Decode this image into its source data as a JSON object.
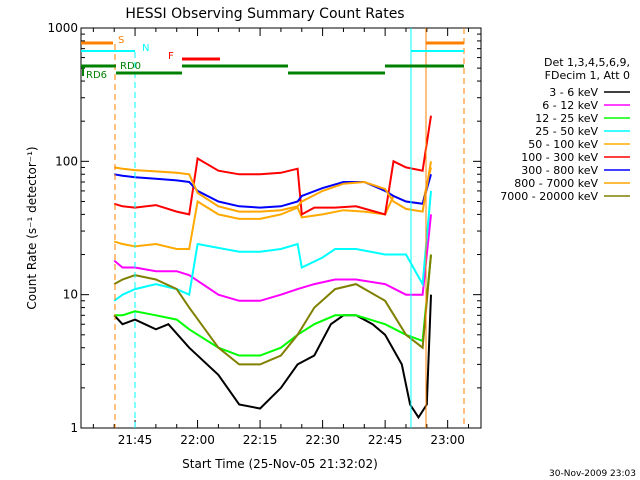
{
  "chart_data": {
    "type": "line",
    "title": "HESSI Observing Summary Count Rates",
    "xlabel": "Start Time (25-Nov-05 21:32:02)",
    "ylabel": "Count Rate (s⁻¹ detector⁻¹)",
    "x_scale": "time (minutes after 21:32:02)",
    "xlim": [
      "21:32:02",
      "23:08:00"
    ],
    "ylim": [
      1,
      1000
    ],
    "y_scale": "log",
    "x_ticks": [
      "21:45",
      "22:00",
      "22:15",
      "22:30",
      "22:45",
      "23:00"
    ],
    "y_ticks": [
      "1",
      "10",
      "100",
      "1000"
    ],
    "legend_header": [
      "Det 1,3,4,5,6,9,",
      "FDecim 1, Att 0"
    ],
    "legend_position": "right",
    "series": [
      {
        "name": "3 - 6 keV",
        "color": "#000000",
        "x": [
          "21:40",
          "21:42",
          "21:45",
          "21:50",
          "21:53",
          "21:58",
          "22:05",
          "22:10",
          "22:15",
          "22:20",
          "22:24",
          "22:28",
          "22:32",
          "22:35",
          "22:38",
          "22:42",
          "22:45",
          "22:49",
          "22:51",
          "22:53",
          "22:55",
          "22:56"
        ],
        "y": [
          7,
          6,
          6.5,
          5.5,
          6,
          4,
          2.5,
          1.5,
          1.4,
          2,
          3,
          3.5,
          6,
          7,
          7,
          6,
          5,
          3,
          1.5,
          1.2,
          1.5,
          10
        ]
      },
      {
        "name": "6 - 12 keV",
        "color": "#ff00ff",
        "x": [
          "21:40",
          "21:42",
          "21:45",
          "21:50",
          "21:55",
          "21:58",
          "22:05",
          "22:10",
          "22:15",
          "22:20",
          "22:24",
          "22:28",
          "22:33",
          "22:38",
          "22:45",
          "22:50",
          "22:54",
          "22:56"
        ],
        "y": [
          18,
          16,
          16,
          15,
          15,
          14,
          10,
          9,
          9,
          10,
          11,
          12,
          13,
          13,
          12,
          10,
          10,
          40
        ]
      },
      {
        "name": "12 - 25 keV",
        "color": "#00ff00",
        "x": [
          "21:40",
          "21:42",
          "21:45",
          "21:50",
          "21:55",
          "21:58",
          "22:05",
          "22:10",
          "22:15",
          "22:20",
          "22:24",
          "22:28",
          "22:33",
          "22:38",
          "22:45",
          "22:50",
          "22:54",
          "22:56"
        ],
        "y": [
          7,
          7,
          7.5,
          7,
          6.5,
          5.5,
          4,
          3.5,
          3.5,
          4,
          5,
          6,
          7,
          7,
          6,
          5,
          4.5,
          20
        ]
      },
      {
        "name": "25 - 50 keV",
        "color": "#00ffff",
        "x": [
          "21:40",
          "21:42",
          "21:45",
          "21:50",
          "21:55",
          "21:58",
          "22:00",
          "22:10",
          "22:15",
          "22:20",
          "22:24",
          "22:25",
          "22:30",
          "22:33",
          "22:38",
          "22:45",
          "22:47",
          "22:50",
          "22:54",
          "22:56"
        ],
        "y": [
          9,
          10,
          11,
          12,
          11,
          10,
          24,
          21,
          21,
          22,
          24,
          16,
          19,
          22,
          22,
          20,
          20,
          20,
          12,
          60
        ]
      },
      {
        "name": "50 - 100 keV",
        "color": "#ffaa00",
        "x": [
          "21:40",
          "21:42",
          "21:45",
          "21:50",
          "21:55",
          "21:58",
          "22:00",
          "22:05",
          "22:10",
          "22:15",
          "22:20",
          "22:24",
          "22:25",
          "22:30",
          "22:35",
          "22:40",
          "22:45",
          "22:47",
          "22:50",
          "22:54",
          "22:56"
        ],
        "y": [
          25,
          24,
          23,
          24,
          22,
          22,
          50,
          40,
          37,
          37,
          40,
          45,
          38,
          40,
          43,
          42,
          40,
          55,
          50,
          48,
          90
        ]
      },
      {
        "name": "100 - 300 keV",
        "color": "#ff0000",
        "x": [
          "21:40",
          "21:42",
          "21:45",
          "21:50",
          "21:55",
          "21:58",
          "22:00",
          "22:05",
          "22:10",
          "22:15",
          "22:20",
          "22:24",
          "22:25",
          "22:28",
          "22:33",
          "22:38",
          "22:45",
          "22:47",
          "22:50",
          "22:54",
          "22:56"
        ],
        "y": [
          48,
          46,
          45,
          47,
          42,
          40,
          105,
          85,
          80,
          80,
          82,
          88,
          40,
          45,
          45,
          46,
          40,
          100,
          90,
          85,
          220
        ]
      },
      {
        "name": "300 - 800 keV",
        "color": "#0000ff",
        "x": [
          "21:40",
          "21:42",
          "21:45",
          "21:50",
          "21:55",
          "21:58",
          "22:00",
          "22:05",
          "22:10",
          "22:15",
          "22:20",
          "22:24",
          "22:25",
          "22:30",
          "22:35",
          "22:40",
          "22:45",
          "22:47",
          "22:50",
          "22:54",
          "22:56"
        ],
        "y": [
          80,
          78,
          76,
          74,
          72,
          70,
          60,
          50,
          46,
          45,
          46,
          50,
          55,
          63,
          70,
          70,
          60,
          55,
          50,
          48,
          80
        ]
      },
      {
        "name": "800 - 7000 keV",
        "color": "#ffa500",
        "x": [
          "21:40",
          "21:42",
          "21:45",
          "21:50",
          "21:55",
          "21:58",
          "22:00",
          "22:05",
          "22:10",
          "22:15",
          "22:20",
          "22:24",
          "22:25",
          "22:30",
          "22:35",
          "22:40",
          "22:45",
          "22:47",
          "22:50",
          "22:54",
          "22:56"
        ],
        "y": [
          90,
          88,
          86,
          84,
          82,
          80,
          58,
          46,
          42,
          42,
          43,
          46,
          50,
          60,
          68,
          70,
          62,
          50,
          44,
          42,
          100
        ]
      },
      {
        "name": "7000 - 20000 keV",
        "color": "#808000",
        "x": [
          "21:40",
          "21:42",
          "21:45",
          "21:50",
          "21:55",
          "21:58",
          "22:05",
          "22:10",
          "22:15",
          "22:20",
          "22:24",
          "22:28",
          "22:33",
          "22:38",
          "22:45",
          "22:50",
          "22:54",
          "22:56"
        ],
        "y": [
          12,
          13,
          14,
          13,
          11,
          8,
          4,
          3,
          3,
          3.5,
          5,
          8,
          11,
          12,
          9,
          5,
          4,
          20
        ]
      }
    ],
    "state_bars": [
      {
        "label": "S",
        "color": "#ff8000"
      },
      {
        "label": "N",
        "color": "#00ffff"
      },
      {
        "label": "F",
        "color": "#ff0000"
      },
      {
        "label": "RD0",
        "color": "#008000"
      },
      {
        "label": "RD6",
        "color": "#008000"
      }
    ],
    "annotations": {
      "timestamp": "30-Nov-2009 23:03"
    }
  }
}
